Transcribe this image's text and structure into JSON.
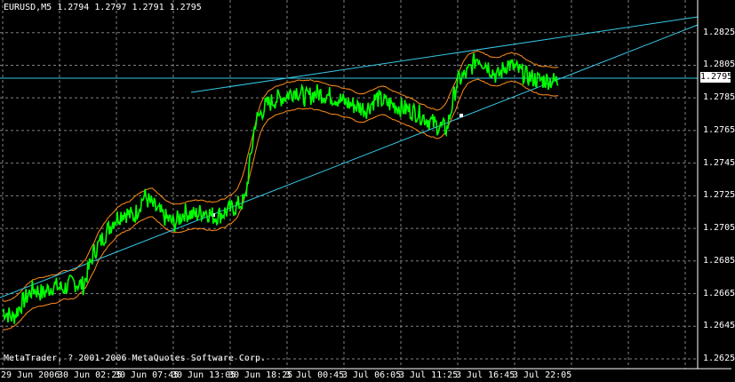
{
  "window": {
    "symbol_header": "EURUSD,M5  1.2794 1.2797 1.2791 1.2795",
    "copyright": "MetaTrader, ? 2001-2006 MetaQuotes Software Corp.",
    "current_price": "1.2795"
  },
  "colors": {
    "background": "#000000",
    "grid": "#7f7f7f",
    "price_line": "#00ff00",
    "envelope": "#ff8c1a",
    "trendline": "#36c9e8",
    "axis": "#ffffff"
  },
  "price_axis": {
    "ticks": [
      "1.2825",
      "1.2805",
      "1.2785",
      "1.2765",
      "1.2745",
      "1.2725",
      "1.2705",
      "1.2685",
      "1.2665",
      "1.2645",
      "1.2625"
    ]
  },
  "time_axis": {
    "ticks": [
      "29 Jun 2006",
      "30 Jun 02:25",
      "30 Jun 07:45",
      "30 Jun 13:05",
      "30 Jun 18:25",
      "3 Jul 00:45",
      "3 Jul 06:05",
      "3 Jul 11:25",
      "3 Jul 16:45",
      "3 Jul 22:05"
    ]
  },
  "chart_data": {
    "type": "line",
    "symbol": "EURUSD",
    "timeframe": "M5",
    "ylim": [
      1.2619,
      1.2845
    ],
    "series": [
      {
        "values": [
          1.2655,
          1.265,
          1.266,
          1.2668,
          1.2665,
          1.267,
          1.2668,
          1.2672,
          1.267,
          1.269,
          1.27,
          1.271,
          1.2715,
          1.2712,
          1.2725,
          1.2718,
          1.2712,
          1.2708,
          1.2715,
          1.2713,
          1.2716,
          1.2712,
          1.2715,
          1.2718,
          1.2722,
          1.277,
          1.278,
          1.2784,
          1.2786,
          1.279,
          1.2785,
          1.2788,
          1.2787,
          1.2785,
          1.2782,
          1.278,
          1.2778,
          1.2785,
          1.2782,
          1.278,
          1.2778,
          1.2776,
          1.2772,
          1.2768,
          1.2766,
          1.2795,
          1.28,
          1.281,
          1.2805,
          1.2798,
          1.2806,
          1.2802,
          1.2798,
          1.2796,
          1.2796,
          1.2795
        ]
      }
    ]
  }
}
